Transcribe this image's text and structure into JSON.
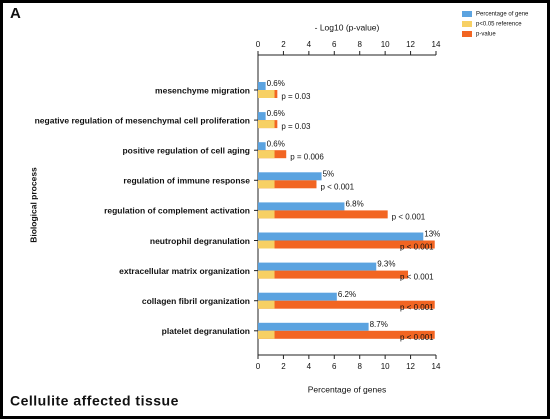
{
  "chart_data": {
    "type": "hbar",
    "panel_label": "A",
    "caption": "Cellulite affected tissue",
    "xlabel": "Percentage of genes",
    "x2label": "- Log10 (p-value)",
    "ylabel": "Biological process",
    "categories": [
      "mesenchyme migration",
      "negative regulation of mesenchymal cell proliferation",
      "positive regulation of cell aging",
      "regulation of immune response",
      "regulation of complement activation",
      "neutrophil degranulation",
      "extracellular matrix organization",
      "collagen fibril organization",
      "platelet degranulation"
    ],
    "series": [
      {
        "name": "Percentage of gene",
        "color": "#5ba3e0",
        "values": [
          0.6,
          0.6,
          0.6,
          5,
          6.8,
          13,
          9.3,
          6.2,
          8.7
        ],
        "value_labels": [
          "0.6%",
          "0.6%",
          "0.6%",
          "5%",
          "6.8%",
          "13%",
          "9.3%",
          "6.2%",
          "8.7%"
        ]
      },
      {
        "name": "p-value",
        "color": "#f26522",
        "axis": "x2",
        "values": [
          1.52,
          1.52,
          2.22,
          4.6,
          10.2,
          13.9,
          11.8,
          13.9,
          13.9
        ]
      },
      {
        "name": "p<0.05 reference",
        "color": "#f7d064",
        "axis": "x2",
        "values": [
          1.3,
          1.3,
          1.3,
          1.3,
          1.3,
          1.3,
          1.3,
          1.3,
          1.3
        ]
      }
    ],
    "p_annotations": [
      "p = 0.03",
      "p = 0.03",
      "p = 0.006",
      "p < 0.001",
      "p < 0.001",
      "p < 0.001",
      "p < 0.001",
      "p < 0.001",
      "p < 0.001"
    ],
    "legend_order": [
      0,
      2,
      1
    ],
    "legend_position": "upper right",
    "xlim": [
      0,
      14
    ],
    "xticks": [
      0,
      2,
      4,
      6,
      8,
      10,
      12,
      14
    ],
    "x2lim": [
      0,
      14
    ],
    "x2ticks": [
      0,
      2,
      4,
      6,
      8,
      10,
      12,
      14
    ]
  }
}
